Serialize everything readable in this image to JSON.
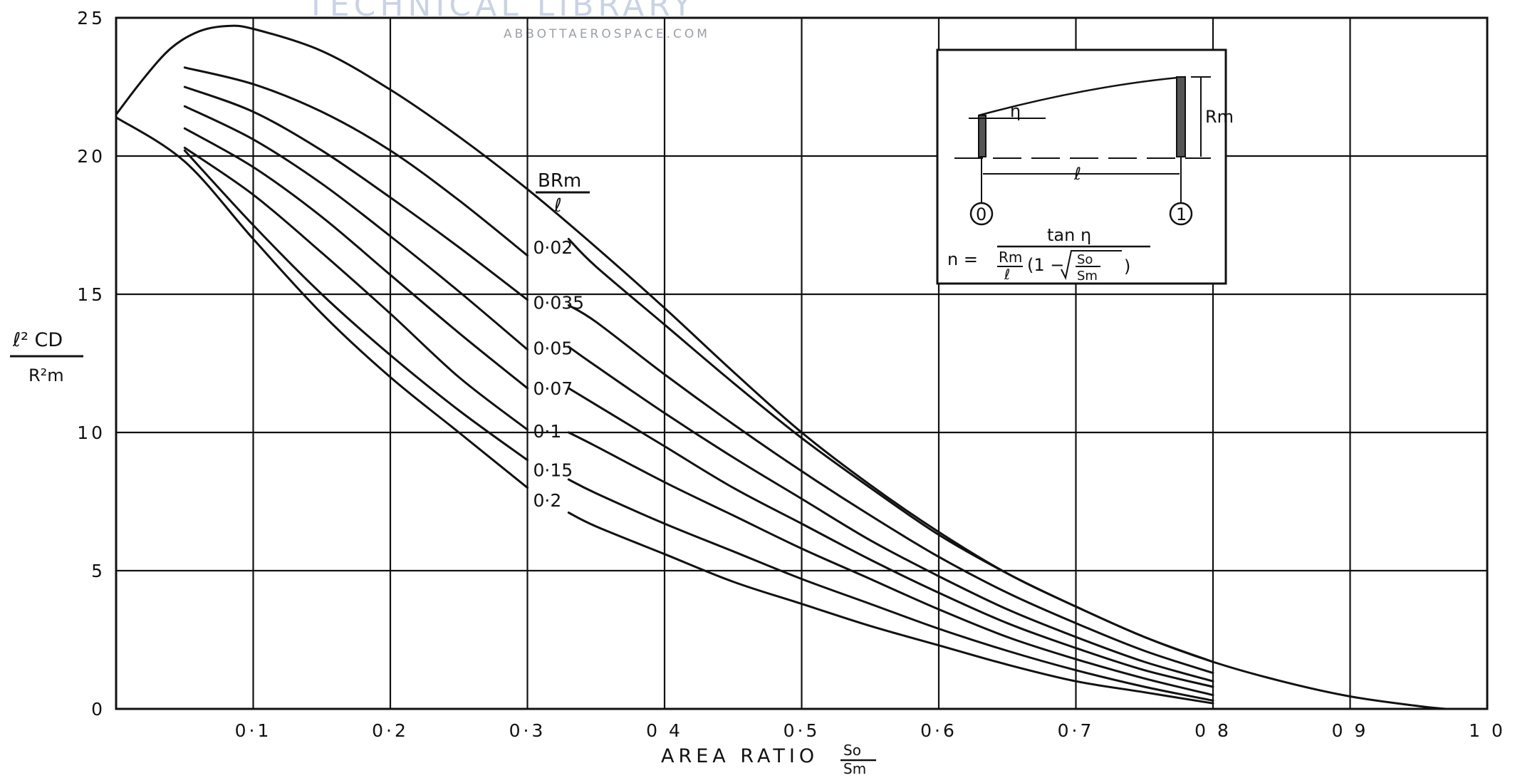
{
  "watermark": {
    "title": "TECHNICAL LIBRARY",
    "subtitle": "ABBOTTAEROSPACE.COM"
  },
  "chart_data": {
    "type": "line",
    "xlabel": "AREA RATIO",
    "xlabel_fraction": {
      "numerator": "So",
      "denominator": "Sm"
    },
    "ylabel_fraction": {
      "numerator": "ℓ² CD",
      "denominator": "R²m"
    },
    "xlim": [
      0,
      1.0
    ],
    "ylim": [
      0,
      25
    ],
    "grid": true,
    "x_ticks": [
      {
        "value": 0.1,
        "label": "0·1"
      },
      {
        "value": 0.2,
        "label": "0·2"
      },
      {
        "value": 0.3,
        "label": "0·3"
      },
      {
        "value": 0.4,
        "label": "0 4"
      },
      {
        "value": 0.5,
        "label": "0·5"
      },
      {
        "value": 0.6,
        "label": "0·6"
      },
      {
        "value": 0.7,
        "label": "0·7"
      },
      {
        "value": 0.8,
        "label": "0 8"
      },
      {
        "value": 0.9,
        "label": "0 9"
      },
      {
        "value": 1.0,
        "label": "1 0"
      }
    ],
    "y_ticks": [
      {
        "value": 0,
        "label": "0"
      },
      {
        "value": 5,
        "label": "5"
      },
      {
        "value": 10,
        "label": "10"
      },
      {
        "value": 15,
        "label": "15"
      },
      {
        "value": 20,
        "label": "20"
      },
      {
        "value": 25,
        "label": "25"
      }
    ],
    "parameter_label": {
      "numerator": "BRm",
      "denominator": "ℓ"
    },
    "series": [
      {
        "name": "0·02",
        "segments": [
          [
            [
              0.05,
              23.2
            ],
            [
              0.1,
              22.6
            ],
            [
              0.15,
              21.6
            ],
            [
              0.2,
              20.2
            ],
            [
              0.25,
              18.4
            ],
            [
              0.3,
              16.4
            ]
          ],
          [
            [
              0.33,
              17.0
            ],
            [
              0.35,
              16.0
            ],
            [
              0.4,
              13.9
            ],
            [
              0.45,
              11.8
            ],
            [
              0.5,
              9.8
            ],
            [
              0.55,
              8.0
            ],
            [
              0.6,
              6.3
            ],
            [
              0.65,
              4.9
            ],
            [
              0.7,
              3.7
            ],
            [
              0.75,
              2.6
            ],
            [
              0.8,
              1.7
            ]
          ]
        ]
      },
      {
        "name": "0·035",
        "segments": [
          [
            [
              0.05,
              22.5
            ],
            [
              0.1,
              21.6
            ],
            [
              0.15,
              20.2
            ],
            [
              0.2,
              18.5
            ],
            [
              0.25,
              16.7
            ],
            [
              0.3,
              14.8
            ]
          ],
          [
            [
              0.33,
              14.6
            ],
            [
              0.35,
              14.0
            ],
            [
              0.4,
              12.1
            ],
            [
              0.45,
              10.3
            ],
            [
              0.5,
              8.6
            ],
            [
              0.55,
              7.0
            ],
            [
              0.6,
              5.5
            ],
            [
              0.65,
              4.2
            ],
            [
              0.7,
              3.1
            ],
            [
              0.75,
              2.1
            ],
            [
              0.8,
              1.3
            ]
          ]
        ]
      },
      {
        "name": "0·05",
        "segments": [
          [
            [
              0.05,
              21.8
            ],
            [
              0.1,
              20.6
            ],
            [
              0.15,
              19.0
            ],
            [
              0.2,
              17.1
            ],
            [
              0.25,
              15.1
            ],
            [
              0.3,
              13.0
            ]
          ],
          [
            [
              0.33,
              13.1
            ],
            [
              0.35,
              12.4
            ],
            [
              0.4,
              10.7
            ],
            [
              0.45,
              9.1
            ],
            [
              0.5,
              7.6
            ],
            [
              0.55,
              6.1
            ],
            [
              0.6,
              4.8
            ],
            [
              0.65,
              3.6
            ],
            [
              0.7,
              2.6
            ],
            [
              0.75,
              1.7
            ],
            [
              0.8,
              1.0
            ]
          ]
        ]
      },
      {
        "name": "0·07",
        "segments": [
          [
            [
              0.05,
              21.0
            ],
            [
              0.1,
              19.6
            ],
            [
              0.15,
              17.8
            ],
            [
              0.2,
              15.7
            ],
            [
              0.25,
              13.6
            ],
            [
              0.3,
              11.6
            ]
          ],
          [
            [
              0.33,
              11.6
            ],
            [
              0.35,
              11.0
            ],
            [
              0.4,
              9.5
            ],
            [
              0.45,
              8.0
            ],
            [
              0.5,
              6.7
            ],
            [
              0.55,
              5.4
            ],
            [
              0.6,
              4.2
            ],
            [
              0.65,
              3.1
            ],
            [
              0.7,
              2.2
            ],
            [
              0.75,
              1.4
            ],
            [
              0.8,
              0.8
            ]
          ]
        ]
      },
      {
        "name": "0·1",
        "segments": [
          [
            [
              0.05,
              20.3
            ],
            [
              0.1,
              18.6
            ],
            [
              0.15,
              16.5
            ],
            [
              0.2,
              14.3
            ],
            [
              0.25,
              12.0
            ],
            [
              0.3,
              10.1
            ]
          ],
          [
            [
              0.33,
              10.0
            ],
            [
              0.35,
              9.5
            ],
            [
              0.4,
              8.2
            ],
            [
              0.45,
              7.0
            ],
            [
              0.5,
              5.8
            ],
            [
              0.55,
              4.7
            ],
            [
              0.6,
              3.6
            ],
            [
              0.65,
              2.6
            ],
            [
              0.7,
              1.8
            ],
            [
              0.75,
              1.1
            ],
            [
              0.8,
              0.5
            ]
          ]
        ]
      },
      {
        "name": "0·15",
        "segments": [
          [
            [
              0.05,
              20.2
            ],
            [
              0.1,
              17.5
            ],
            [
              0.15,
              15.0
            ],
            [
              0.2,
              12.8
            ],
            [
              0.25,
              10.8
            ],
            [
              0.3,
              9.0
            ]
          ],
          [
            [
              0.33,
              8.3
            ],
            [
              0.35,
              7.8
            ],
            [
              0.4,
              6.7
            ],
            [
              0.45,
              5.7
            ],
            [
              0.5,
              4.7
            ],
            [
              0.55,
              3.8
            ],
            [
              0.6,
              2.9
            ],
            [
              0.65,
              2.1
            ],
            [
              0.7,
              1.4
            ],
            [
              0.75,
              0.8
            ],
            [
              0.8,
              0.3
            ]
          ]
        ]
      },
      {
        "name": "0·2",
        "segments": [
          [
            [
              0.0,
              21.4
            ],
            [
              0.05,
              19.8
            ],
            [
              0.1,
              17.0
            ],
            [
              0.15,
              14.3
            ],
            [
              0.2,
              12.0
            ],
            [
              0.25,
              10.0
            ],
            [
              0.3,
              8.0
            ]
          ],
          [
            [
              0.33,
              7.1
            ],
            [
              0.35,
              6.6
            ],
            [
              0.4,
              5.6
            ],
            [
              0.45,
              4.6
            ],
            [
              0.5,
              3.8
            ],
            [
              0.55,
              3.0
            ],
            [
              0.6,
              2.3
            ],
            [
              0.65,
              1.6
            ],
            [
              0.7,
              1.0
            ],
            [
              0.75,
              0.6
            ],
            [
              0.8,
              0.2
            ]
          ]
        ]
      },
      {
        "name": "",
        "segments": [
          [
            [
              0.0,
              21.5
            ],
            [
              0.02,
              22.8
            ],
            [
              0.04,
              23.9
            ],
            [
              0.06,
              24.5
            ],
            [
              0.08,
              24.7
            ],
            [
              0.1,
              24.6
            ],
            [
              0.15,
              23.8
            ],
            [
              0.2,
              22.4
            ],
            [
              0.25,
              20.7
            ],
            [
              0.3,
              18.8
            ],
            [
              0.35,
              16.7
            ],
            [
              0.4,
              14.5
            ],
            [
              0.45,
              12.2
            ],
            [
              0.5,
              10.0
            ],
            [
              0.55,
              8.1
            ],
            [
              0.6,
              6.4
            ],
            [
              0.65,
              4.9
            ],
            [
              0.7,
              3.7
            ],
            [
              0.75,
              2.6
            ],
            [
              0.8,
              1.7
            ],
            [
              0.85,
              1.0
            ],
            [
              0.9,
              0.45
            ],
            [
              0.95,
              0.1
            ],
            [
              0.97,
              0.0
            ]
          ]
        ]
      }
    ]
  },
  "inset": {
    "eta": "η",
    "rm": "Rm",
    "length": "ℓ",
    "station_0": "0",
    "station_1": "1",
    "formula": {
      "lhs": "n =",
      "numerator": "tan η",
      "den_rm": "Rm",
      "den_l": "ℓ",
      "den_open": "(1 −",
      "den_so": "So",
      "den_sm": "Sm",
      "den_close": ")"
    }
  }
}
